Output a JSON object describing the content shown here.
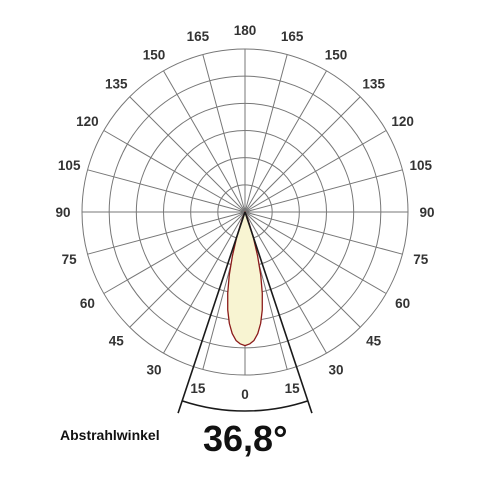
{
  "chart_data": {
    "type": "polar",
    "angle_ticks_left": [
      "180",
      "165",
      "150",
      "135",
      "120",
      "105",
      "90",
      "75",
      "60",
      "45",
      "30",
      "15",
      "0"
    ],
    "angle_ticks_right": [
      "165",
      "150",
      "135",
      "120",
      "105",
      "90",
      "75",
      "60",
      "45",
      "30",
      "15"
    ],
    "angle_tick_values": [
      180,
      165,
      150,
      135,
      120,
      105,
      90,
      75,
      60,
      45,
      30,
      15,
      0
    ],
    "angle_step_deg": 15,
    "radial_rings": 6,
    "grid": true,
    "beam_angle_deg": 36.8,
    "distribution": {
      "angles_deg": [
        0,
        2,
        4,
        6,
        8,
        10,
        12,
        14,
        16,
        18,
        20,
        22,
        24
      ],
      "relative_intensity": [
        0.82,
        0.81,
        0.79,
        0.75,
        0.69,
        0.61,
        0.51,
        0.4,
        0.28,
        0.17,
        0.08,
        0.03,
        0.0
      ]
    },
    "colors": {
      "grid": "#777777",
      "curve_stroke": "#8b1a1a",
      "curve_fill": "#f8f4d2",
      "beam_lines": "#1a1a1a",
      "text": "#333333"
    }
  },
  "caption": {
    "label": "Abstrahlwinkel",
    "value": "36,8°"
  }
}
